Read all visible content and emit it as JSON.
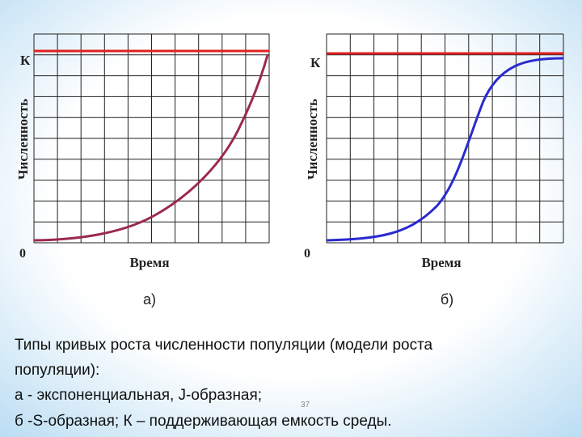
{
  "panels": [
    {
      "k_label": "К",
      "y_label": "Численность",
      "x_label": "Время",
      "origin": "0",
      "caption": "а)"
    },
    {
      "k_label": "К",
      "y_label": "Численность",
      "x_label": "Время",
      "origin": "0",
      "caption": "б)"
    }
  ],
  "text": {
    "lines": [
      "Типы кривых роста численности популяции (модели роста",
      "популяции):",
      "а - экспоненциальная, J-образная;",
      "б -S-образная; К – поддерживающая емкость среды."
    ]
  },
  "slide_number": "37"
}
